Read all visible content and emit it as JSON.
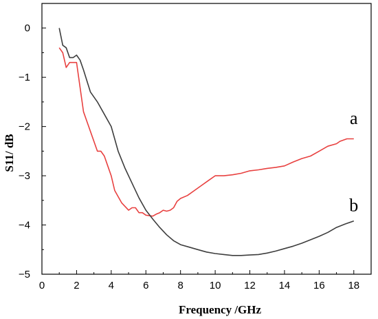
{
  "chart_data": {
    "type": "line",
    "title": "",
    "xlabel": "Frequency /GHz",
    "ylabel": "S11/ dB",
    "xlim": [
      0,
      19
    ],
    "ylim": [
      -5,
      0.5
    ],
    "xticks": [
      0,
      2,
      4,
      6,
      8,
      10,
      12,
      14,
      16,
      18
    ],
    "yticks": [
      0,
      -1,
      -2,
      -3,
      -4,
      -5
    ],
    "xtick_labels": [
      "0",
      "2",
      "4",
      "6",
      "8",
      "10",
      "12",
      "14",
      "16",
      "18"
    ],
    "ytick_labels": [
      "0",
      "−1",
      "−2",
      "−3",
      "−4",
      "−5"
    ],
    "grid": false,
    "series": [
      {
        "name": "a",
        "color": "#e8403f",
        "x": [
          1.0,
          1.2,
          1.4,
          1.6,
          2.0,
          2.4,
          2.8,
          3.2,
          3.4,
          3.6,
          3.8,
          4.0,
          4.2,
          4.6,
          5.0,
          5.2,
          5.4,
          5.6,
          5.8,
          6.0,
          6.4,
          6.6,
          6.8,
          7.0,
          7.2,
          7.4,
          7.6,
          7.8,
          8.0,
          8.4,
          8.8,
          9.2,
          9.6,
          10.0,
          10.5,
          11.0,
          11.5,
          12.0,
          12.5,
          13.0,
          13.5,
          14.0,
          14.5,
          15.0,
          15.5,
          16.0,
          16.5,
          17.0,
          17.2,
          17.6,
          18.0
        ],
        "y": [
          -0.4,
          -0.5,
          -0.8,
          -0.7,
          -0.7,
          -1.7,
          -2.1,
          -2.5,
          -2.5,
          -2.6,
          -2.8,
          -3.0,
          -3.3,
          -3.55,
          -3.7,
          -3.65,
          -3.65,
          -3.75,
          -3.75,
          -3.8,
          -3.82,
          -3.78,
          -3.75,
          -3.7,
          -3.72,
          -3.7,
          -3.65,
          -3.52,
          -3.46,
          -3.4,
          -3.3,
          -3.2,
          -3.1,
          -3.0,
          -3.0,
          -2.98,
          -2.95,
          -2.9,
          -2.88,
          -2.85,
          -2.83,
          -2.8,
          -2.72,
          -2.65,
          -2.6,
          -2.5,
          -2.4,
          -2.35,
          -2.3,
          -2.25,
          -2.25
        ]
      },
      {
        "name": "b",
        "color": "#3d3d3d",
        "x": [
          1.0,
          1.2,
          1.4,
          1.6,
          1.8,
          2.0,
          2.2,
          2.4,
          2.8,
          3.2,
          3.6,
          4.0,
          4.4,
          4.8,
          5.2,
          5.6,
          6.0,
          6.4,
          6.8,
          7.2,
          7.6,
          8.0,
          8.5,
          9.0,
          9.5,
          10.0,
          10.5,
          11.0,
          11.5,
          12.0,
          12.5,
          13.0,
          13.5,
          14.0,
          14.5,
          15.0,
          15.5,
          16.0,
          16.5,
          17.0,
          17.5,
          18.0
        ],
        "y": [
          0.0,
          -0.35,
          -0.4,
          -0.6,
          -0.6,
          -0.55,
          -0.65,
          -0.85,
          -1.3,
          -1.5,
          -1.75,
          -2.0,
          -2.5,
          -2.85,
          -3.15,
          -3.45,
          -3.7,
          -3.88,
          -4.05,
          -4.2,
          -4.32,
          -4.4,
          -4.45,
          -4.5,
          -4.55,
          -4.58,
          -4.6,
          -4.62,
          -4.62,
          -4.61,
          -4.6,
          -4.57,
          -4.53,
          -4.48,
          -4.43,
          -4.37,
          -4.3,
          -4.23,
          -4.15,
          -4.05,
          -3.98,
          -3.92
        ]
      }
    ],
    "series_labels": [
      {
        "text": "a",
        "x": 18.0,
        "y": -1.95
      },
      {
        "text": "b",
        "x": 18.0,
        "y": -3.72
      }
    ]
  }
}
